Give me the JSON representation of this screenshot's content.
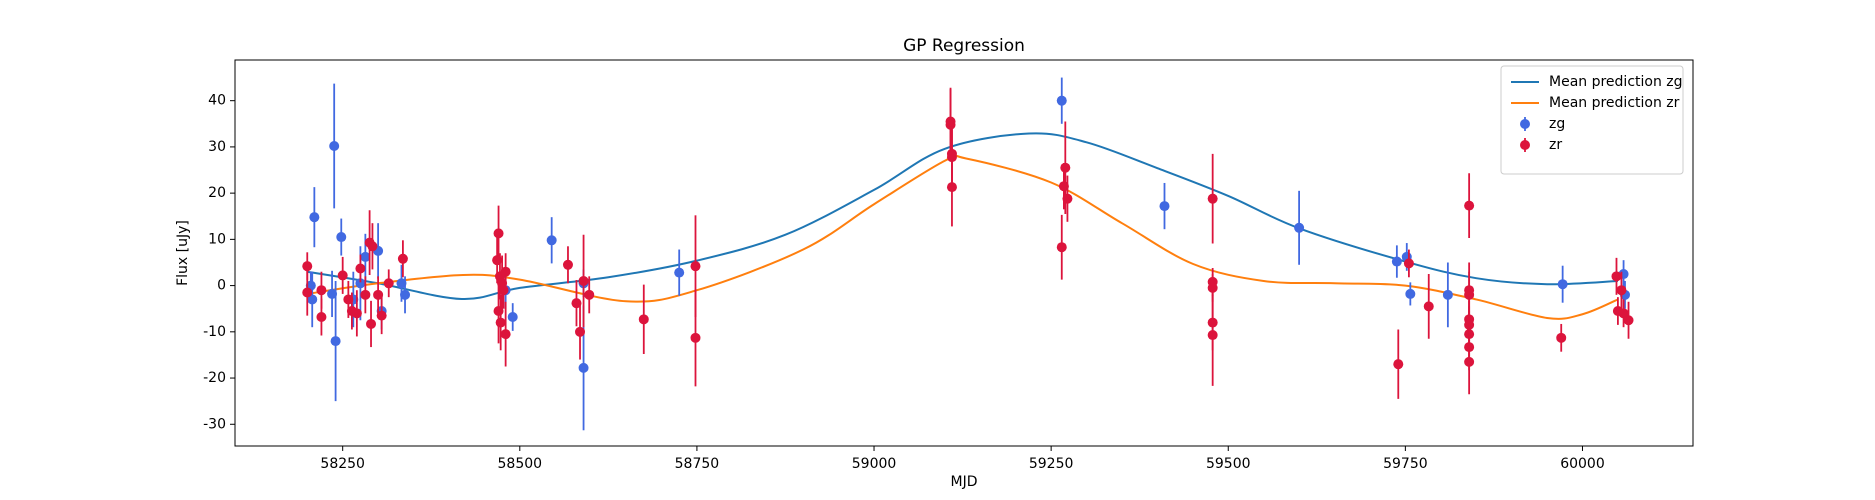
{
  "chart_data": {
    "type": "line",
    "title": "GP Regression",
    "x_label": "MJD",
    "y_label": "Flux [uJy]",
    "xlim": [
      58098,
      60156
    ],
    "ylim": [
      -34.7,
      48.8
    ],
    "xticks": [
      58250,
      58500,
      58750,
      59000,
      59250,
      59500,
      59750,
      60000
    ],
    "yticks": [
      -30,
      -20,
      -10,
      0,
      10,
      20,
      30,
      40
    ],
    "grid": false,
    "legend": "upper right",
    "series": [
      {
        "name": "Mean prediction zg",
        "kind": "line",
        "color": "#1f77b4",
        "x": [
          58200,
          58300,
          58418,
          58500,
          58625,
          58750,
          58875,
          59000,
          59100,
          59219,
          59300,
          59400,
          59500,
          59600,
          59750,
          59850,
          59950,
          60050
        ],
        "values": [
          3,
          0.5,
          -2.9,
          -0.5,
          1.8,
          5.4,
          11,
          20.7,
          29.6,
          32.9,
          31,
          25.4,
          19.4,
          12.4,
          5.2,
          1.6,
          0.3,
          1
        ]
      },
      {
        "name": "Mean prediction zr",
        "kind": "line",
        "color": "#ff7f0e",
        "x": [
          58200,
          58300,
          58420,
          58500,
          58650,
          58750,
          58900,
          59000,
          59100,
          59130,
          59250,
          59350,
          59450,
          59550,
          59650,
          59750,
          59850,
          59950,
          60000,
          60050
        ],
        "values": [
          -1.8,
          0.5,
          2.3,
          1.3,
          -3.4,
          -1,
          7.8,
          17.6,
          27,
          27.5,
          22.3,
          13.5,
          4.7,
          1,
          0.5,
          0,
          -3,
          -7,
          -6.2,
          -3
        ]
      },
      {
        "name": "zg",
        "kind": "errorbar",
        "color": "#4169e1",
        "x": [
          58205,
          58210,
          58207,
          58235,
          58238,
          58240,
          58248,
          58265,
          58275,
          58282,
          58300,
          58305,
          58333,
          58338,
          58480,
          58490,
          58545,
          58590,
          58590,
          58725,
          59265,
          59410,
          59600,
          59738,
          59752,
          59757,
          59810,
          59972,
          60058,
          60060
        ],
        "values": [
          0,
          14.8,
          -3,
          -1.8,
          30.2,
          -12,
          10.5,
          -3,
          0.5,
          6.2,
          7.5,
          -5.5,
          0.5,
          -2,
          -1,
          -6.8,
          9.8,
          -17.8,
          0.5,
          2.8,
          40,
          17.2,
          12.5,
          5.2,
          6.2,
          -1.8,
          -2,
          0.3,
          2.5,
          -2
        ],
        "errors": [
          3,
          6.5,
          6,
          5,
          13.5,
          13,
          4,
          6,
          8,
          5,
          6,
          4,
          4,
          4,
          4,
          3,
          5,
          13.5,
          3,
          5,
          5,
          5,
          8,
          3.5,
          3,
          2.5,
          7,
          4,
          3,
          3
        ]
      },
      {
        "name": "zr",
        "kind": "errorbar",
        "color": "#dc143c",
        "x": [
          58200,
          58200,
          58220,
          58220,
          58250,
          58258,
          58263,
          58270,
          58275,
          58282,
          58288,
          58290,
          58292,
          58300,
          58305,
          58315,
          58335,
          58468,
          58470,
          58470,
          58472,
          58473,
          58475,
          58477,
          58480,
          58480,
          58568,
          58580,
          58585,
          58590,
          58598,
          58675,
          58748,
          58748,
          59108,
          59108,
          59110,
          59110,
          59110,
          59265,
          59268,
          59270,
          59273,
          59478,
          59478,
          59478,
          59478,
          59478,
          59740,
          59755,
          59783,
          59840,
          59840,
          59840,
          59840,
          59840,
          59840,
          59840,
          59840,
          59970,
          60048,
          60050,
          60055,
          60058,
          60065
        ],
        "values": [
          4.2,
          -1.5,
          -6.8,
          -1,
          2.2,
          -3,
          -5.5,
          -6,
          3.7,
          -2,
          9.3,
          -8.3,
          8.5,
          -2,
          -6.5,
          0.5,
          5.8,
          5.5,
          11.3,
          -5.5,
          2,
          -8,
          0.5,
          -1,
          3,
          -10.5,
          4.5,
          -3.8,
          -10,
          1,
          -2,
          -7.3,
          -11.3,
          4.2,
          34.8,
          35.5,
          28.5,
          27.8,
          21.3,
          8.3,
          21.5,
          25.5,
          18.8,
          18.8,
          0.8,
          -0.5,
          -8,
          -10.7,
          -17,
          4.8,
          -4.5,
          17.3,
          -1,
          -2,
          -7.3,
          -8.5,
          -10.5,
          -13.3,
          -16.5,
          -11.3,
          2,
          -5.5,
          -1,
          -6,
          -7.5
        ],
        "errors": [
          3,
          5,
          4,
          4,
          4,
          4,
          4,
          5,
          3,
          4,
          7,
          5,
          5,
          4,
          4,
          3,
          4,
          5,
          6,
          7,
          5,
          6,
          6,
          4,
          4,
          7,
          4,
          5,
          6,
          10,
          4,
          7.5,
          10.5,
          11,
          8,
          7,
          6,
          6,
          8.5,
          7,
          5,
          10,
          5,
          9.7,
          3,
          3,
          6,
          11,
          7.5,
          3,
          7,
          7,
          6,
          5,
          4,
          4,
          5,
          5,
          7,
          3,
          4,
          3,
          4,
          3,
          4
        ]
      }
    ]
  }
}
